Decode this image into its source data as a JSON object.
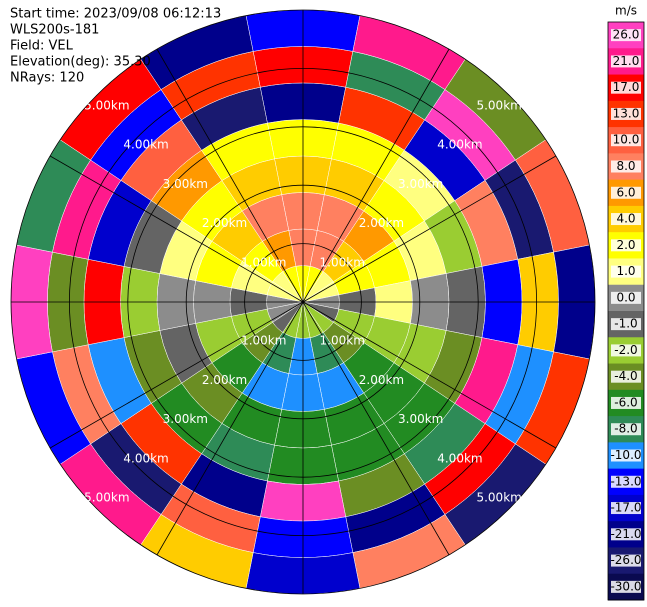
{
  "chart_data": {
    "type": "ppi",
    "info": [
      "Start time: 2023/09/08 06:12:13",
      "WLS200s-181",
      "Field: VEL",
      "Elevation(deg): 35.30",
      "NRays: 120"
    ],
    "rlim": [
      0,
      5
    ],
    "rings": [
      {
        "value": 1,
        "label": "1.00km"
      },
      {
        "value": 2,
        "label": "2.00km"
      },
      {
        "value": 3,
        "label": "3.00km"
      },
      {
        "value": 4,
        "label": "4.00km"
      },
      {
        "value": 5,
        "label": "5.00km"
      }
    ],
    "field": {
      "values": [
        [
          2,
          8,
          8,
          4,
          2,
          -21,
          17,
          -13
        ],
        [
          2,
          8,
          8,
          4,
          2,
          13,
          -8,
          21
        ],
        [
          1,
          4,
          6,
          2,
          1,
          -17,
          26,
          -4
        ],
        [
          1,
          2,
          2,
          1,
          -2,
          8,
          -26,
          10
        ],
        [
          0,
          -1,
          1,
          0,
          -1,
          -13,
          4,
          -21
        ],
        [
          -1,
          -2,
          -2,
          -2,
          -4,
          21,
          -10,
          13
        ],
        [
          -2,
          -4,
          -6,
          -6,
          -6,
          -8,
          17,
          -26
        ],
        [
          -2,
          -8,
          -10,
          -6,
          -6,
          -4,
          -21,
          8
        ],
        [
          -2,
          -10,
          -10,
          -6,
          -6,
          26,
          -13,
          -17
        ],
        [
          -2,
          -8,
          -10,
          -6,
          -8,
          -21,
          10,
          4
        ],
        [
          -1,
          -4,
          -6,
          -4,
          -6,
          13,
          -26,
          21
        ],
        [
          0,
          -2,
          -2,
          -1,
          -4,
          -10,
          8,
          -13
        ],
        [
          0,
          -1,
          0,
          0,
          -2,
          17,
          -4,
          26
        ],
        [
          1,
          1,
          2,
          1,
          -1,
          -17,
          21,
          -8
        ],
        [
          1,
          2,
          4,
          2,
          6,
          10,
          -13,
          17
        ],
        [
          2,
          6,
          8,
          4,
          2,
          -26,
          13,
          -21
        ]
      ]
    },
    "colorbar": {
      "label": "m/s",
      "ticks": [
        {
          "value": 26,
          "label": "26.0"
        },
        {
          "value": 21,
          "label": "21.0"
        },
        {
          "value": 17,
          "label": "17.0"
        },
        {
          "value": 13,
          "label": "13.0"
        },
        {
          "value": 10,
          "label": "10.0"
        },
        {
          "value": 8,
          "label": "8.0"
        },
        {
          "value": 6,
          "label": "6.0"
        },
        {
          "value": 4,
          "label": "4.0"
        },
        {
          "value": 2,
          "label": "2.0"
        },
        {
          "value": 1,
          "label": "1.0"
        },
        {
          "value": 0,
          "label": "0.0"
        },
        {
          "value": -1,
          "label": "-1.0"
        },
        {
          "value": -2,
          "label": "-2.0"
        },
        {
          "value": -4,
          "label": "-4.0"
        },
        {
          "value": -6,
          "label": "-6.0"
        },
        {
          "value": -8,
          "label": "-8.0"
        },
        {
          "value": -10,
          "label": "-10.0"
        },
        {
          "value": -13,
          "label": "-13.0"
        },
        {
          "value": -17,
          "label": "-17.0"
        },
        {
          "value": -21,
          "label": "-21.0"
        },
        {
          "value": -26,
          "label": "-26.0"
        },
        {
          "value": -30,
          "label": "-30.0"
        }
      ],
      "colors": [
        "#ff40c0",
        "#ff1a8c",
        "#ff0000",
        "#ff3300",
        "#ff6040",
        "#ff8060",
        "#ff9900",
        "#ffcc00",
        "#ffff00",
        "#ffff80",
        "#8c8c8c",
        "#646464",
        "#9acd32",
        "#6b8e23",
        "#228b22",
        "#2e8b57",
        "#1e90ff",
        "#0000ff",
        "#0000cd",
        "#00008b",
        "#191970",
        "#0a0a50"
      ]
    }
  }
}
